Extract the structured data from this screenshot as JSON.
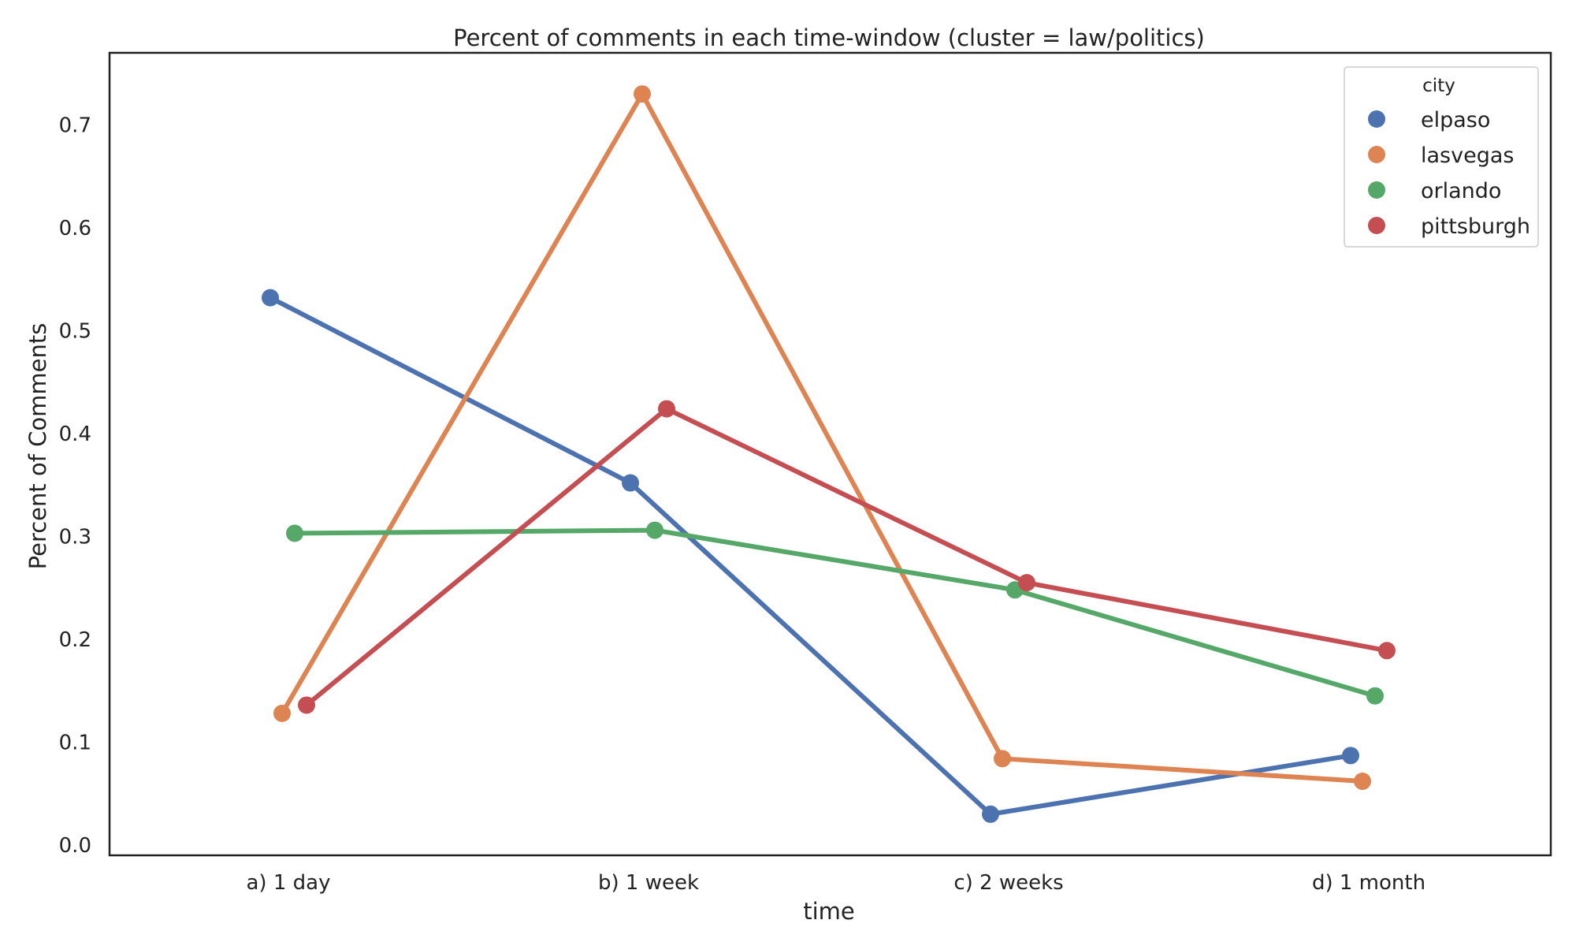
{
  "chart_data": {
    "type": "line",
    "title": "Percent of comments in each time-window (cluster = law/politics)",
    "xlabel": "time",
    "ylabel": "Percent of Comments",
    "categories": [
      "a) 1 day",
      "b) 1 week",
      "c) 2 weeks",
      "d) 1 month"
    ],
    "yticks": [
      "0.0",
      "0.1",
      "0.2",
      "0.3",
      "0.4",
      "0.5",
      "0.6",
      "0.7"
    ],
    "ylim": [
      -0.01,
      0.77
    ],
    "grid": false,
    "legend": {
      "title": "city",
      "placement": "top-right"
    },
    "series": [
      {
        "name": "elpaso",
        "color": "#4c72b0",
        "values": [
          0.532,
          0.352,
          0.03,
          0.087
        ]
      },
      {
        "name": "lasvegas",
        "color": "#dd8452",
        "values": [
          0.128,
          0.73,
          0.084,
          0.062
        ]
      },
      {
        "name": "orlando",
        "color": "#55a868",
        "values": [
          0.303,
          0.306,
          0.248,
          0.145
        ]
      },
      {
        "name": "pittsburgh",
        "color": "#c44e52",
        "values": [
          0.136,
          0.424,
          0.255,
          0.189
        ]
      }
    ]
  }
}
